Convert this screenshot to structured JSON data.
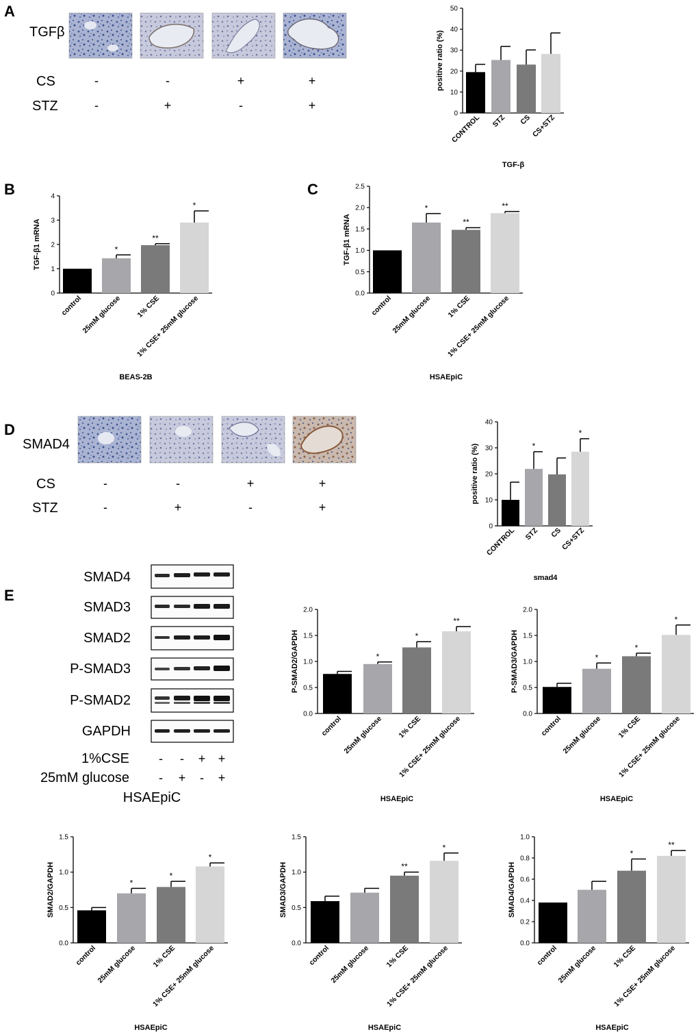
{
  "panels": [
    {
      "id": "A",
      "label": "A"
    },
    {
      "id": "B",
      "label": "B"
    },
    {
      "id": "C",
      "label": "C"
    },
    {
      "id": "D",
      "label": "D"
    },
    {
      "id": "E",
      "label": "E"
    }
  ],
  "ihc_A": {
    "stain_label": "TGFβ",
    "rows": [
      {
        "label": "CS",
        "signs": [
          "-",
          "-",
          "+",
          "+"
        ]
      },
      {
        "label": "STZ",
        "signs": [
          "-",
          "+",
          "-",
          "+"
        ]
      }
    ]
  },
  "ihc_D": {
    "stain_label": "SMAD4",
    "rows": [
      {
        "label": "CS",
        "signs": [
          "-",
          "-",
          "+",
          "+"
        ]
      },
      {
        "label": "STZ",
        "signs": [
          "-",
          "+",
          "-",
          "+"
        ]
      }
    ]
  },
  "western_blot": {
    "bands": [
      "SMAD4",
      "SMAD3",
      "SMAD2",
      "P-SMAD3",
      "P-SMAD2",
      "GAPDH"
    ],
    "rows": [
      {
        "label": "1%CSE",
        "signs": [
          "-",
          "-",
          "+",
          "+"
        ]
      },
      {
        "label": "25mM glucose",
        "signs": [
          "-",
          "+",
          "-",
          "+"
        ]
      }
    ],
    "cell_line": "HSAEpiC"
  },
  "colors": {
    "black": "#000000",
    "mid_gray": "#a6a6ab",
    "dark_gray": "#7a7a7a",
    "light_gray": "#d6d6d6"
  },
  "chart_data": [
    {
      "id": "A-chart",
      "type": "bar",
      "categories": [
        "CONTROL",
        "STZ",
        "CS",
        "CS+STZ"
      ],
      "values": [
        19.5,
        25.3,
        23.1,
        28.2
      ],
      "errors": [
        3.7,
        6.5,
        7.0,
        10.0
      ],
      "significance": [
        "",
        "",
        "",
        ""
      ],
      "ylabel": "positive ratio (%)",
      "xlabel": "TGF-β",
      "ylim": [
        0,
        50
      ],
      "yticks": [
        "0",
        "10",
        "20",
        "30",
        "40",
        "50"
      ]
    },
    {
      "id": "B-chart",
      "type": "bar",
      "categories": [
        "control",
        "25mM glucose",
        "1% CSE",
        "1% CSE+ 25mM glucose"
      ],
      "values": [
        1.0,
        1.43,
        1.97,
        2.9
      ],
      "errors": [
        0.0,
        0.14,
        0.06,
        0.48
      ],
      "significance": [
        "",
        "*",
        "**",
        "*"
      ],
      "ylabel": "TGF-β1 mRNA",
      "xlabel": "BEAS-2B",
      "ylim": [
        0,
        4
      ],
      "yticks": [
        "0",
        "1",
        "2",
        "3",
        "4"
      ]
    },
    {
      "id": "C-chart",
      "type": "bar",
      "categories": [
        "control",
        "25mM glucose",
        "1% CSE",
        "1% CSE+ 25mM glucose"
      ],
      "values": [
        1.0,
        1.65,
        1.48,
        1.87
      ],
      "errors": [
        0.0,
        0.21,
        0.05,
        0.04
      ],
      "significance": [
        "",
        "*",
        "**",
        "**"
      ],
      "ylabel": "TGF-β1 mRNA",
      "xlabel": "HSAEpiC",
      "ylim": [
        0,
        2.5
      ],
      "yticks": [
        "0.0",
        "0.5",
        "1.0",
        "1.5",
        "2.0",
        "2.5"
      ]
    },
    {
      "id": "D-chart",
      "type": "bar",
      "categories": [
        "CONTROL",
        "STZ",
        "CS",
        "CS+STZ"
      ],
      "values": [
        10.0,
        21.9,
        19.8,
        28.5
      ],
      "errors": [
        6.8,
        6.6,
        6.3,
        5.0
      ],
      "significance": [
        "",
        "*",
        "",
        "*"
      ],
      "ylabel": "positive ratio (%)",
      "xlabel": "smad4",
      "ylim": [
        0,
        40
      ],
      "yticks": [
        "0",
        "10",
        "20",
        "30",
        "40"
      ]
    },
    {
      "id": "E-psmad2",
      "type": "bar",
      "categories": [
        "control",
        "25mM glucose",
        "1% CSE",
        "1% CSE+ 25mM glucose"
      ],
      "values": [
        0.76,
        0.95,
        1.27,
        1.58
      ],
      "errors": [
        0.05,
        0.04,
        0.11,
        0.09
      ],
      "significance": [
        "",
        "*",
        "*",
        "**"
      ],
      "ylabel": "P-SMAD2/GAPDH",
      "xlabel": "HSAEpiC",
      "ylim": [
        0,
        2.0
      ],
      "yticks": [
        "0.0",
        "0.5",
        "1.0",
        "1.5",
        "2.0"
      ]
    },
    {
      "id": "E-psmad3",
      "type": "bar",
      "categories": [
        "control",
        "25mM glucose",
        "1% CSE",
        "1% CSE+ 25mM glucose"
      ],
      "values": [
        0.51,
        0.86,
        1.1,
        1.51
      ],
      "errors": [
        0.07,
        0.11,
        0.06,
        0.19
      ],
      "significance": [
        "",
        "*",
        "*",
        "*"
      ],
      "ylabel": "P-SMAD3/GAPDH",
      "xlabel": "HSAEpiC",
      "ylim": [
        0,
        2.0
      ],
      "yticks": [
        "0.0",
        "0.5",
        "1.0",
        "1.5",
        "2.0"
      ]
    },
    {
      "id": "E-smad2",
      "type": "bar",
      "categories": [
        "control",
        "25mM glucose",
        "1% CSE",
        "1% CSE+ 25mM glucose"
      ],
      "values": [
        0.46,
        0.7,
        0.79,
        1.08
      ],
      "errors": [
        0.04,
        0.07,
        0.08,
        0.05
      ],
      "significance": [
        "",
        "*",
        "*",
        "*"
      ],
      "ylabel": "SMAD2/GAPDH",
      "xlabel": "HSAEpiC",
      "ylim": [
        0,
        1.5
      ],
      "yticks": [
        "0.0",
        "0.5",
        "1.0",
        "1.5"
      ]
    },
    {
      "id": "E-smad3",
      "type": "bar",
      "categories": [
        "control",
        "25mM glucose",
        "1% CSE",
        "1% CSE+ 25mM glucose"
      ],
      "values": [
        0.59,
        0.71,
        0.95,
        1.16
      ],
      "errors": [
        0.07,
        0.06,
        0.05,
        0.11
      ],
      "significance": [
        "",
        "",
        "**",
        "*"
      ],
      "ylabel": "SMAD3/GAPDH",
      "xlabel": "HSAEpiC",
      "ylim": [
        0,
        1.5
      ],
      "yticks": [
        "0.0",
        "0.5",
        "1.0",
        "1.5"
      ]
    },
    {
      "id": "E-smad4",
      "type": "bar",
      "categories": [
        "control",
        "25mM glucose",
        "1% CSE",
        "1% CSE+ 25mM glucose"
      ],
      "values": [
        0.38,
        0.5,
        0.68,
        0.82
      ],
      "errors": [
        0.0,
        0.08,
        0.11,
        0.05
      ],
      "significance": [
        "",
        "",
        "*",
        "**"
      ],
      "ylabel": "SMAD4/GAPDH",
      "xlabel": "HSAEpiC",
      "ylim": [
        0,
        1.0
      ],
      "yticks": [
        "0.0",
        "0.2",
        "0.4",
        "0.6",
        "0.8",
        "1.0"
      ]
    }
  ]
}
